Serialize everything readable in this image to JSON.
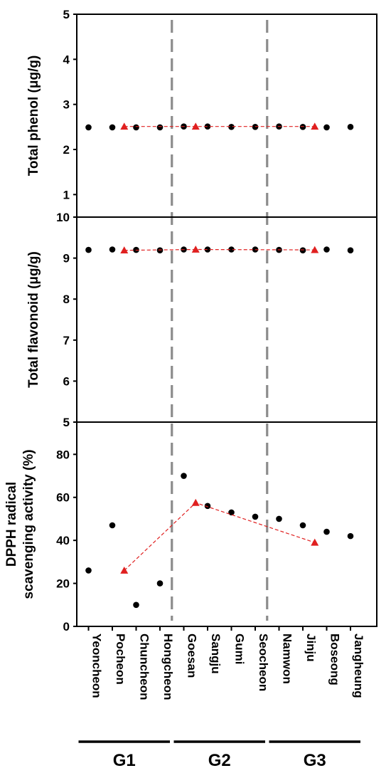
{
  "chart_data": [
    {
      "type": "scatter",
      "ylabel": "Total phenol (μg/g)",
      "ylim": [
        0.5,
        5
      ],
      "yticks": [
        1,
        2,
        3,
        4,
        5
      ],
      "categories": [
        "Yeoncheon",
        "Pocheon",
        "Chuncheon",
        "Hongcheon",
        "Goesan",
        "Sangju",
        "Gumi",
        "Seocheon",
        "Namwon",
        "Jinju",
        "Boseong",
        "Jangheung"
      ],
      "series": [
        {
          "marker": "circle",
          "color": "#000000",
          "values": [
            2.49,
            2.49,
            2.49,
            2.49,
            2.51,
            2.51,
            2.5,
            2.5,
            2.51,
            2.5,
            2.49,
            2.5
          ]
        },
        {
          "marker": "triangle",
          "color": "#e02020",
          "line": "dashed",
          "x": [
            2.5,
            5.5,
            10.5
          ],
          "values": [
            2.51,
            2.51,
            2.51
          ]
        }
      ]
    },
    {
      "type": "scatter",
      "ylabel": "Total flavonoid (μg/g)",
      "ylim": [
        5,
        10
      ],
      "yticks": [
        5,
        6,
        7,
        8,
        9,
        10
      ],
      "categories": [
        "Yeoncheon",
        "Pocheon",
        "Chuncheon",
        "Hongcheon",
        "Goesan",
        "Sangju",
        "Gumi",
        "Seocheon",
        "Namwon",
        "Jinju",
        "Boseong",
        "Jangheung"
      ],
      "series": [
        {
          "marker": "circle",
          "color": "#000000",
          "values": [
            9.2,
            9.21,
            9.2,
            9.19,
            9.21,
            9.21,
            9.21,
            9.21,
            9.2,
            9.19,
            9.21,
            9.19
          ]
        },
        {
          "marker": "triangle",
          "color": "#e02020",
          "line": "dashed",
          "x": [
            2.5,
            5.5,
            10.5
          ],
          "values": [
            9.19,
            9.21,
            9.2
          ]
        }
      ]
    },
    {
      "type": "scatter",
      "ylabel": "DPPH radical scavenging activity (%)",
      "ylabel_lines": [
        "DPPH radical",
        "scavenging activity (%)"
      ],
      "ylim": [
        0,
        95
      ],
      "yticks": [
        0,
        20,
        40,
        60,
        80
      ],
      "categories": [
        "Yeoncheon",
        "Pocheon",
        "Chuncheon",
        "Hongcheon",
        "Goesan",
        "Sangju",
        "Gumi",
        "Seocheon",
        "Namwon",
        "Jinju",
        "Boseong",
        "Jangheung"
      ],
      "series": [
        {
          "marker": "circle",
          "color": "#000000",
          "values": [
            26,
            47,
            10,
            20,
            70,
            56,
            53,
            51,
            50,
            47,
            44,
            42
          ]
        },
        {
          "marker": "triangle",
          "color": "#e02020",
          "line": "dashed",
          "x": [
            2.5,
            5.5,
            10.5
          ],
          "values": [
            26,
            57.5,
            39
          ]
        }
      ]
    }
  ],
  "groups": [
    {
      "label": "G1",
      "from": 1,
      "to": 4
    },
    {
      "label": "G2",
      "from": 5,
      "to": 8
    },
    {
      "label": "G3",
      "from": 9,
      "to": 12
    }
  ],
  "group_dividers_after": [
    4,
    8
  ]
}
